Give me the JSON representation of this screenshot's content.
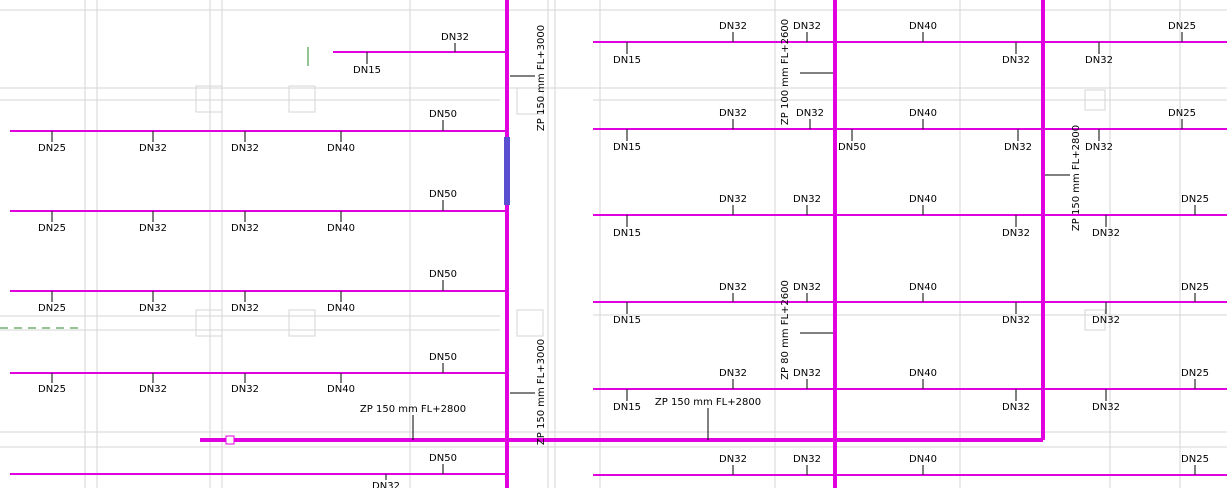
{
  "labels": [
    "DN32",
    "DN15",
    "DN50",
    "DN25",
    "DN32",
    "DN32",
    "DN40",
    "DN50",
    "DN25",
    "DN32",
    "DN32",
    "DN40",
    "DN50",
    "DN25",
    "DN32",
    "DN32",
    "DN40",
    "DN50",
    "DN25",
    "DN32",
    "DN32",
    "DN40",
    "ZP 150 mm FL+2800",
    "DN50",
    "DN32",
    "ZP 150 mm FL+3000",
    "ZP 150 mm FL+3000",
    "DN32",
    "DN32",
    "DN40",
    "DN25",
    "DN15",
    "DN32",
    "DN32",
    "DN32",
    "DN32",
    "DN40",
    "DN25",
    "DN15",
    "DN50",
    "DN32",
    "DN32",
    "DN32",
    "DN32",
    "DN40",
    "DN25",
    "DN15",
    "DN32",
    "DN32",
    "DN32",
    "DN32",
    "DN40",
    "DN25",
    "DN15",
    "DN32",
    "DN32",
    "DN32",
    "DN32",
    "DN40",
    "DN25",
    "DN15",
    "DN32",
    "DN32",
    "ZP 150 mm FL+2800",
    "DN32",
    "DN32",
    "DN40",
    "DN25",
    "ZP 100 mm FL+2600",
    "ZP 80 mm FL+2600",
    "ZP 150 mm FL+2800"
  ]
}
